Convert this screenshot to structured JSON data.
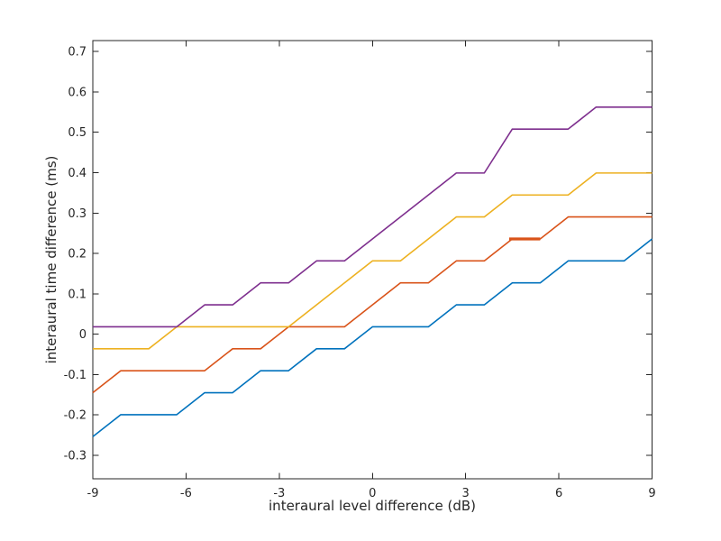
{
  "chart_data": {
    "type": "line",
    "title": "",
    "xlabel": "interaural level difference (dB)",
    "ylabel": "interaural time difference (ms)",
    "xlim": [
      -9,
      9
    ],
    "ylim": [
      -0.358,
      0.727
    ],
    "xticks": [
      -9,
      -6,
      -3,
      0,
      3,
      6,
      9
    ],
    "yticks": [
      -0.3,
      -0.2,
      -0.1,
      0,
      0.1,
      0.2,
      0.3,
      0.4,
      0.5,
      0.6,
      0.7
    ],
    "grid": false,
    "legend": "none",
    "background_color": "#ffffff",
    "axis_color": "#262626",
    "x": [
      -9,
      -8.1,
      -7.2,
      -6.3,
      -5.4,
      -4.5,
      -3.6,
      -2.7,
      -1.8,
      -0.9,
      0,
      0.9,
      1.8,
      2.7,
      3.6,
      4.5,
      5.4,
      6.3,
      7.2,
      8.1,
      9
    ],
    "series": [
      {
        "name": "blue-line",
        "color": "#0072BD",
        "values": [
          -0.2537,
          -0.1993,
          -0.1993,
          -0.1993,
          -0.1449,
          -0.1449,
          -0.0905,
          -0.0905,
          -0.0361,
          -0.0361,
          0.0183,
          0.0183,
          0.0183,
          0.0727,
          0.0727,
          0.1271,
          0.1271,
          0.1815,
          0.1815,
          0.1815,
          0.2359
        ]
      },
      {
        "name": "orange-line",
        "color": "#D95319",
        "values": [
          -0.1449,
          -0.0905,
          -0.0905,
          -0.0905,
          -0.0905,
          -0.0361,
          -0.0361,
          0.0183,
          0.0183,
          0.0183,
          0.0727,
          0.1271,
          0.1271,
          0.1815,
          0.1815,
          0.2359,
          0.2359,
          0.2903,
          0.2903,
          0.2903,
          0.2903
        ]
      },
      {
        "name": "yellow-line",
        "color": "#EDB120",
        "values": [
          -0.0361,
          -0.0361,
          -0.0361,
          0.0183,
          0.0183,
          0.0183,
          0.0183,
          0.0183,
          0.0727,
          0.1271,
          0.1815,
          0.1815,
          0.2359,
          0.2903,
          0.2903,
          0.3447,
          0.3447,
          0.3447,
          0.3991,
          0.3991,
          0.3991
        ]
      },
      {
        "name": "purple-line",
        "color": "#7E2F8E",
        "values": [
          0.0183,
          0.0183,
          0.0183,
          0.0183,
          0.0727,
          0.0727,
          0.1271,
          0.1271,
          0.1815,
          0.1815,
          0.2359,
          0.2903,
          0.3447,
          0.3991,
          0.3991,
          0.5079,
          0.5079,
          0.5079,
          0.5623,
          0.5623,
          0.5623
        ]
      }
    ],
    "annotations": [
      {
        "type": "thick-flat-segment",
        "series": "orange-line",
        "color": "#D95319",
        "x_start": 4.4,
        "x_end": 5.4,
        "y": 0.2359
      }
    ]
  }
}
